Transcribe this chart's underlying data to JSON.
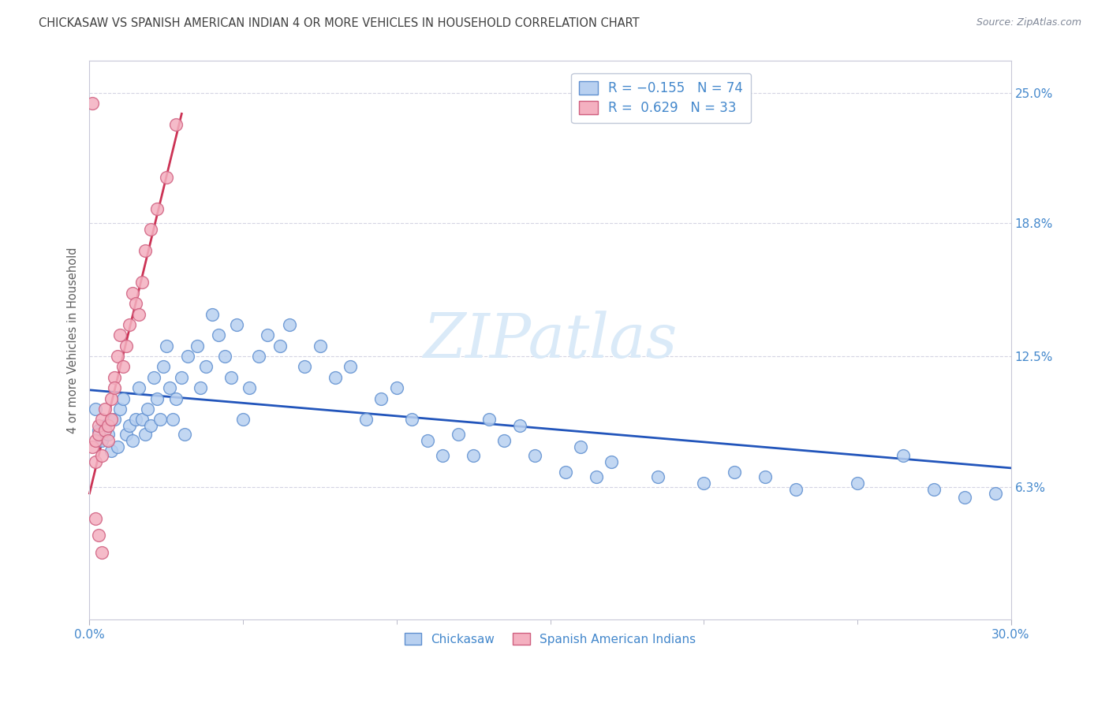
{
  "title": "CHICKASAW VS SPANISH AMERICAN INDIAN 4 OR MORE VEHICLES IN HOUSEHOLD CORRELATION CHART",
  "source": "Source: ZipAtlas.com",
  "ylabel": "4 or more Vehicles in Household",
  "xlim": [
    0.0,
    0.3
  ],
  "ylim": [
    0.0,
    0.265
  ],
  "ytick_labels": [
    "6.3%",
    "12.5%",
    "18.8%",
    "25.0%"
  ],
  "ytick_positions": [
    0.063,
    0.125,
    0.188,
    0.25
  ],
  "series1_color": "#b8d0f0",
  "series2_color": "#f4b0c0",
  "series1_edge": "#6090d0",
  "series2_edge": "#d06080",
  "trendline1_color": "#2255bb",
  "trendline2_color": "#cc3355",
  "watermark": "ZIPatlas",
  "watermark_color": "#daeaf8",
  "background_color": "#ffffff",
  "title_color": "#404040",
  "axis_label_color": "#606060",
  "blue_tick_color": "#4488cc",
  "chickasaw_x": [
    0.002,
    0.003,
    0.004,
    0.005,
    0.006,
    0.007,
    0.008,
    0.009,
    0.01,
    0.011,
    0.012,
    0.013,
    0.014,
    0.015,
    0.016,
    0.017,
    0.018,
    0.019,
    0.02,
    0.021,
    0.022,
    0.023,
    0.024,
    0.025,
    0.026,
    0.027,
    0.028,
    0.03,
    0.031,
    0.032,
    0.035,
    0.036,
    0.038,
    0.04,
    0.042,
    0.044,
    0.046,
    0.048,
    0.05,
    0.052,
    0.055,
    0.058,
    0.062,
    0.065,
    0.07,
    0.075,
    0.08,
    0.085,
    0.09,
    0.095,
    0.1,
    0.105,
    0.11,
    0.115,
    0.12,
    0.125,
    0.13,
    0.135,
    0.14,
    0.145,
    0.155,
    0.16,
    0.165,
    0.17,
    0.185,
    0.2,
    0.21,
    0.22,
    0.23,
    0.25,
    0.265,
    0.275,
    0.285,
    0.295
  ],
  "chickasaw_y": [
    0.1,
    0.09,
    0.085,
    0.092,
    0.088,
    0.08,
    0.095,
    0.082,
    0.1,
    0.105,
    0.088,
    0.092,
    0.085,
    0.095,
    0.11,
    0.095,
    0.088,
    0.1,
    0.092,
    0.115,
    0.105,
    0.095,
    0.12,
    0.13,
    0.11,
    0.095,
    0.105,
    0.115,
    0.088,
    0.125,
    0.13,
    0.11,
    0.12,
    0.145,
    0.135,
    0.125,
    0.115,
    0.14,
    0.095,
    0.11,
    0.125,
    0.135,
    0.13,
    0.14,
    0.12,
    0.13,
    0.115,
    0.12,
    0.095,
    0.105,
    0.11,
    0.095,
    0.085,
    0.078,
    0.088,
    0.078,
    0.095,
    0.085,
    0.092,
    0.078,
    0.07,
    0.082,
    0.068,
    0.075,
    0.068,
    0.065,
    0.07,
    0.068,
    0.062,
    0.065,
    0.078,
    0.062,
    0.058,
    0.06
  ],
  "spanish_x": [
    0.001,
    0.002,
    0.002,
    0.003,
    0.003,
    0.004,
    0.004,
    0.005,
    0.005,
    0.006,
    0.006,
    0.007,
    0.007,
    0.008,
    0.008,
    0.009,
    0.01,
    0.011,
    0.012,
    0.013,
    0.014,
    0.015,
    0.016,
    0.017,
    0.018,
    0.02,
    0.022,
    0.025,
    0.028,
    0.002,
    0.003,
    0.004,
    0.001
  ],
  "spanish_y": [
    0.082,
    0.085,
    0.075,
    0.088,
    0.092,
    0.078,
    0.095,
    0.09,
    0.1,
    0.085,
    0.092,
    0.105,
    0.095,
    0.115,
    0.11,
    0.125,
    0.135,
    0.12,
    0.13,
    0.14,
    0.155,
    0.15,
    0.145,
    0.16,
    0.175,
    0.185,
    0.195,
    0.21,
    0.235,
    0.048,
    0.04,
    0.032,
    0.245
  ],
  "trendline1_x": [
    0.0,
    0.3
  ],
  "trendline1_y": [
    0.109,
    0.072
  ],
  "trendline2_x": [
    0.0,
    0.03
  ],
  "trendline2_y": [
    0.06,
    0.24
  ]
}
